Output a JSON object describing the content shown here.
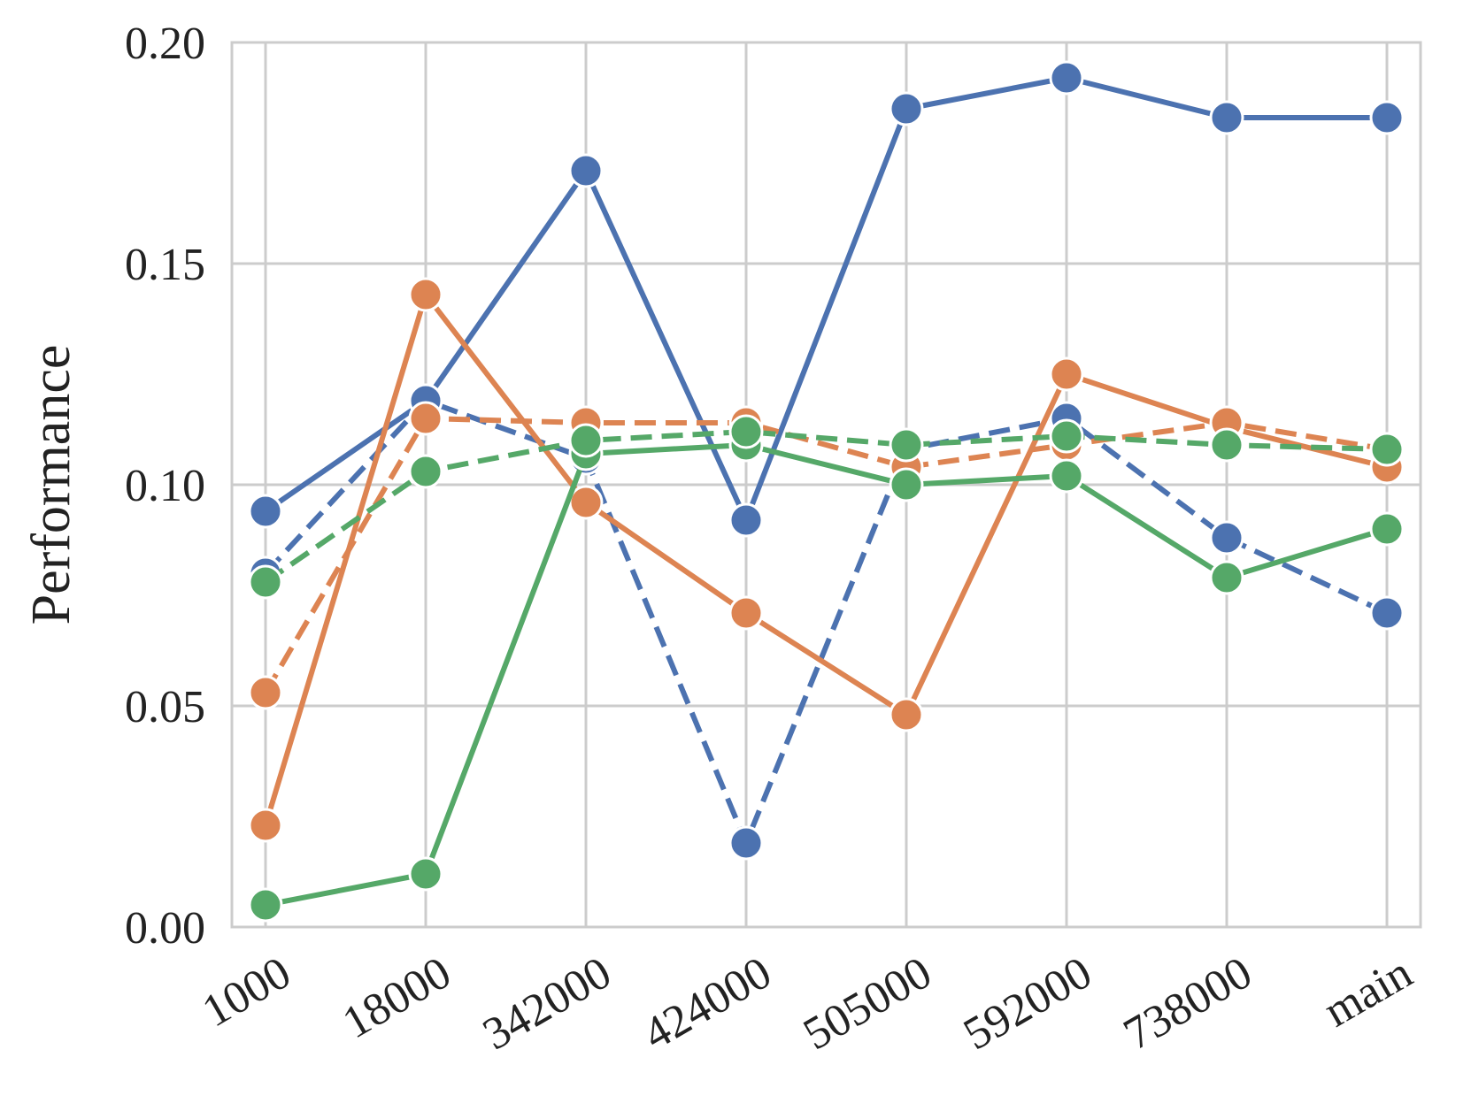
{
  "chart_data": {
    "type": "line",
    "title": "",
    "xlabel": "",
    "ylabel": "Performance",
    "categories": [
      "1000",
      "18000",
      "342000",
      "424000",
      "505000",
      "592000",
      "738000",
      "main"
    ],
    "yticks": [
      "0.00",
      "0.05",
      "0.10",
      "0.15",
      "0.20"
    ],
    "ylim": [
      0.0,
      0.2
    ],
    "grid": true,
    "legend": "none",
    "series": [
      {
        "color": "#4c72b0",
        "dash": "solid",
        "values": [
          0.094,
          0.119,
          0.171,
          0.092,
          0.185,
          0.192,
          0.183,
          0.183
        ]
      },
      {
        "color": "#4c72b0",
        "dash": "dashed",
        "values": [
          0.08,
          0.119,
          0.106,
          0.019,
          0.108,
          0.115,
          0.088,
          0.071
        ]
      },
      {
        "color": "#dd8452",
        "dash": "solid",
        "values": [
          0.023,
          0.143,
          0.096,
          0.071,
          0.048,
          0.125,
          0.113,
          0.104
        ]
      },
      {
        "color": "#dd8452",
        "dash": "dashed",
        "values": [
          0.053,
          0.115,
          0.114,
          0.114,
          0.104,
          0.109,
          0.114,
          0.108
        ]
      },
      {
        "color": "#55a868",
        "dash": "solid",
        "values": [
          0.005,
          0.012,
          0.107,
          0.109,
          0.1,
          0.102,
          0.079,
          0.09
        ]
      },
      {
        "color": "#55a868",
        "dash": "dashed",
        "values": [
          0.078,
          0.103,
          0.11,
          0.112,
          0.109,
          0.111,
          0.109,
          0.108
        ]
      }
    ]
  }
}
